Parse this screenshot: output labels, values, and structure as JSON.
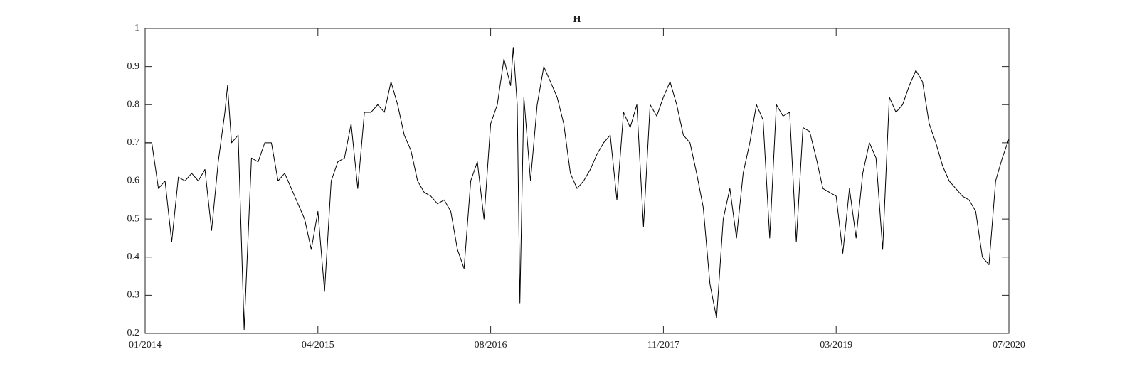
{
  "chart_data": {
    "type": "line",
    "title": "H",
    "x": [
      2014.0,
      2014.05,
      2014.1,
      2014.15,
      2014.2,
      2014.25,
      2014.3,
      2014.35,
      2014.4,
      2014.45,
      2014.5,
      2014.55,
      2014.6,
      2014.62,
      2014.65,
      2014.7,
      2014.745,
      2014.8,
      2014.85,
      2014.9,
      2014.95,
      2015.0,
      2015.05,
      2015.1,
      2015.15,
      2015.2,
      2015.25,
      2015.3,
      2015.35,
      2015.4,
      2015.45,
      2015.5,
      2015.55,
      2015.6,
      2015.65,
      2015.7,
      2015.75,
      2015.8,
      2015.85,
      2015.9,
      2015.95,
      2016.0,
      2016.05,
      2016.1,
      2016.15,
      2016.2,
      2016.25,
      2016.3,
      2016.35,
      2016.4,
      2016.45,
      2016.5,
      2016.55,
      2016.6,
      2016.65,
      2016.7,
      2016.75,
      2016.77,
      2016.8,
      2016.82,
      2016.85,
      2016.9,
      2016.95,
      2017.0,
      2017.05,
      2017.1,
      2017.15,
      2017.2,
      2017.25,
      2017.3,
      2017.35,
      2017.4,
      2017.45,
      2017.5,
      2017.55,
      2017.6,
      2017.65,
      2017.7,
      2017.75,
      2017.8,
      2017.85,
      2017.9,
      2017.95,
      2018.0,
      2018.05,
      2018.1,
      2018.15,
      2018.2,
      2018.25,
      2018.3,
      2018.35,
      2018.4,
      2018.45,
      2018.5,
      2018.55,
      2018.6,
      2018.65,
      2018.7,
      2018.75,
      2018.8,
      2018.85,
      2018.9,
      2018.95,
      2019.0,
      2019.05,
      2019.1,
      2019.15,
      2019.2,
      2019.25,
      2019.3,
      2019.35,
      2019.4,
      2019.45,
      2019.5,
      2019.55,
      2019.6,
      2019.65,
      2019.7,
      2019.75,
      2019.8,
      2019.85,
      2019.9,
      2019.95,
      2020.0,
      2020.05,
      2020.1,
      2020.15,
      2020.2,
      2020.25,
      2020.3,
      2020.35,
      2020.4,
      2020.45,
      2020.5
    ],
    "values": [
      0.7,
      0.7,
      0.58,
      0.6,
      0.44,
      0.61,
      0.6,
      0.62,
      0.6,
      0.63,
      0.47,
      0.65,
      0.78,
      0.85,
      0.7,
      0.72,
      0.21,
      0.66,
      0.65,
      0.7,
      0.7,
      0.6,
      0.62,
      0.58,
      0.54,
      0.5,
      0.42,
      0.52,
      0.31,
      0.6,
      0.65,
      0.66,
      0.75,
      0.58,
      0.78,
      0.78,
      0.8,
      0.78,
      0.86,
      0.8,
      0.72,
      0.68,
      0.6,
      0.57,
      0.56,
      0.54,
      0.55,
      0.52,
      0.42,
      0.37,
      0.6,
      0.65,
      0.5,
      0.75,
      0.8,
      0.92,
      0.85,
      0.95,
      0.8,
      0.28,
      0.82,
      0.6,
      0.8,
      0.9,
      0.86,
      0.82,
      0.75,
      0.62,
      0.58,
      0.6,
      0.63,
      0.67,
      0.7,
      0.72,
      0.55,
      0.78,
      0.74,
      0.8,
      0.48,
      0.8,
      0.77,
      0.82,
      0.86,
      0.8,
      0.72,
      0.7,
      0.62,
      0.53,
      0.33,
      0.24,
      0.5,
      0.58,
      0.45,
      0.62,
      0.7,
      0.8,
      0.76,
      0.45,
      0.8,
      0.77,
      0.78,
      0.44,
      0.74,
      0.73,
      0.66,
      0.58,
      0.57,
      0.56,
      0.41,
      0.58,
      0.45,
      0.62,
      0.7,
      0.66,
      0.42,
      0.82,
      0.78,
      0.8,
      0.85,
      0.89,
      0.86,
      0.75,
      0.7,
      0.64,
      0.6,
      0.58,
      0.56,
      0.55,
      0.52,
      0.4,
      0.38,
      0.6,
      0.66,
      0.71
    ],
    "color": "#000000",
    "xlim": [
      2014.0,
      2020.5
    ],
    "xticks": [
      {
        "value": 2014.0,
        "label": "01/2014"
      },
      {
        "value": 2015.3,
        "label": "04/2015"
      },
      {
        "value": 2016.6,
        "label": "08/2016"
      },
      {
        "value": 2017.9,
        "label": "11/2017"
      },
      {
        "value": 2019.2,
        "label": "03/2019"
      },
      {
        "value": 2020.5,
        "label": "07/2020"
      }
    ],
    "ylim": [
      0.2,
      1
    ],
    "yticks": [
      0.2,
      0.3,
      0.4,
      0.5,
      0.6,
      0.7,
      0.8,
      0.9,
      1
    ]
  }
}
